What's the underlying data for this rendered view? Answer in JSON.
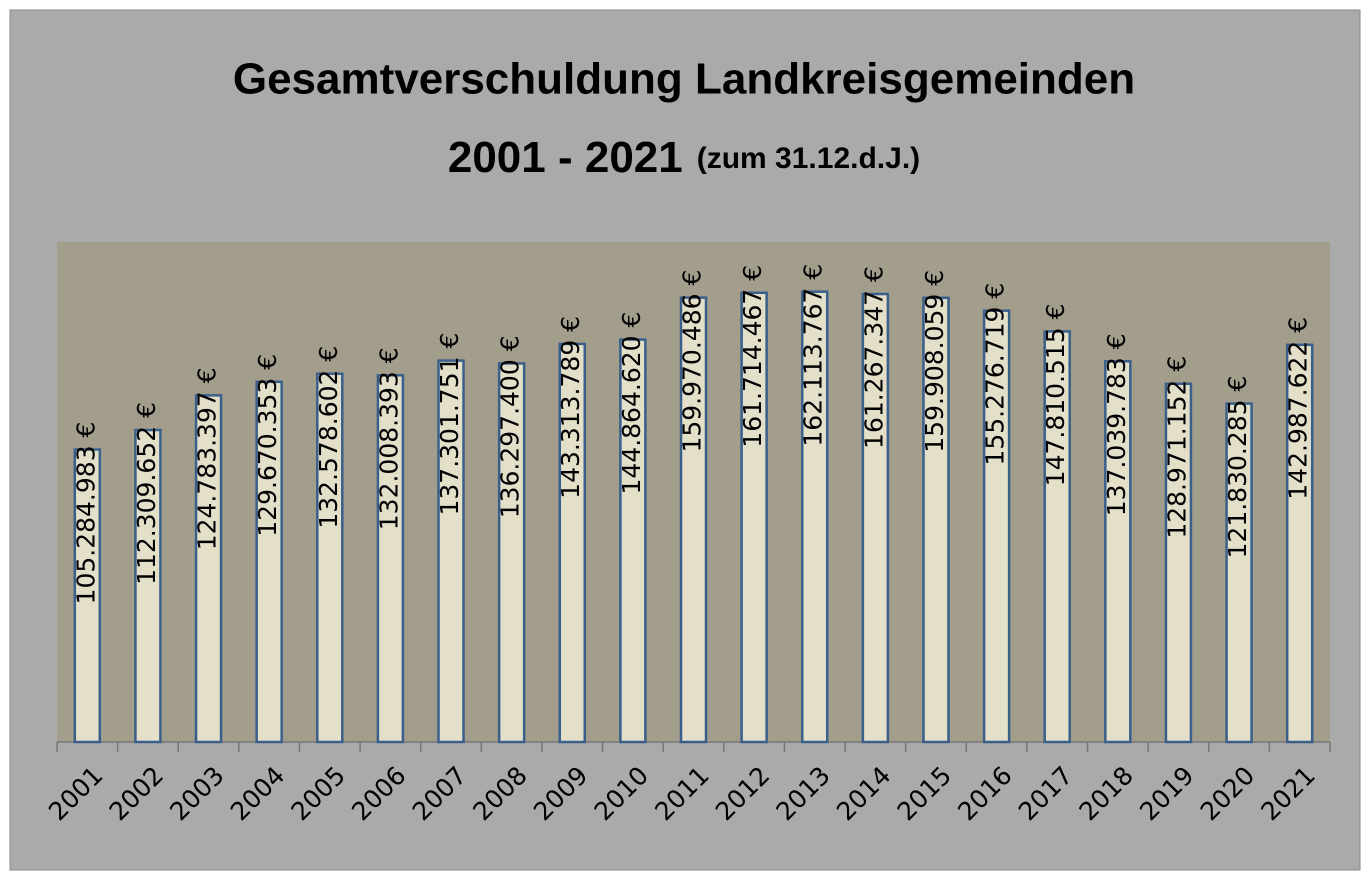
{
  "chart_data": {
    "type": "bar",
    "title": [
      "Gesamtverschuldung Landkreisgemeinden",
      "2001 - 2021"
    ],
    "subtitle": "(zum 31.12.d.J.)",
    "categories": [
      "2001",
      "2002",
      "2003",
      "2004",
      "2005",
      "2006",
      "2007",
      "2008",
      "2009",
      "2010",
      "2011",
      "2012",
      "2013",
      "2014",
      "2015",
      "2016",
      "2017",
      "2018",
      "2019",
      "2020",
      "2021"
    ],
    "values": [
      105284983,
      112309652,
      124783397,
      129670353,
      132578602,
      132008393,
      137301751,
      136297400,
      143313789,
      144864620,
      159970486,
      161714467,
      162113767,
      161267347,
      159908059,
      155276719,
      147810515,
      137039783,
      128971152,
      121830285,
      142987622
    ],
    "value_labels": [
      "105.284.983 €",
      "112.309.652 €",
      "124.783.397 €",
      "129.670.353 €",
      "132.578.602 €",
      "132.008.393 €",
      "137.301.751 €",
      "136.297.400 €",
      "143.313.789 €",
      "144.864.620 €",
      "159.970.486 €",
      "161.714.467 €",
      "162.113.767 €",
      "161.267.347 €",
      "159.908.059 €",
      "155.276.719 €",
      "147.810.515 €",
      "137.039.783 €",
      "128.971.152 €",
      "121.830.285 €",
      "142.987.622 €"
    ],
    "color": "#e3dfc8",
    "ylim": [
      0,
      180000000
    ]
  }
}
